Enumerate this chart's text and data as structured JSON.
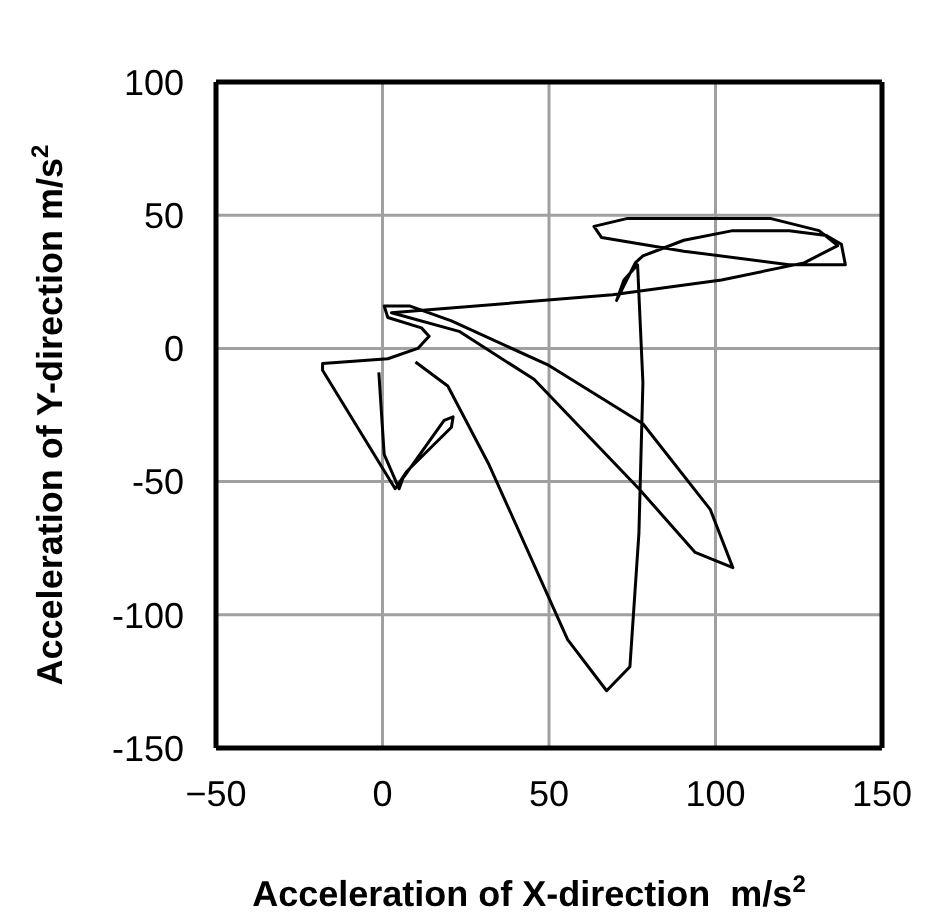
{
  "chart_data": {
    "type": "line",
    "xlabel": "Acceleration of X-direction  m/s$^{2}$",
    "ylabel": "Acceleration of Y-direction m/s$^{2}$",
    "xlim": [
      -50,
      150
    ],
    "xticks": [
      -50,
      0,
      50,
      100,
      150
    ],
    "ylim": [
      -150,
      100
    ],
    "yticks": [
      -150,
      -100,
      -50,
      0,
      50,
      100
    ],
    "grid": true,
    "marker": "none",
    "line_style": "solid",
    "series": [
      {
        "color": "#000000",
        "x": [
          -1.1,
          0.5,
          5.0,
          6.1,
          18.5,
          21.2,
          20.7,
          7.2,
          3.8,
          -18.0,
          -18.0,
          1.6,
          10.6,
          14.0,
          11.7,
          1.6,
          0.5,
          8.3,
          20.7,
          50.0,
          78.2,
          98.4,
          105.2,
          93.9,
          77.0,
          45.5,
          23.0,
          2.7,
          69.1,
          101.8,
          126.6,
          136.7,
          131.1,
          116.4,
          73.6,
          63.5,
          65.8,
          90.5,
          122.1,
          139.0,
          137.8,
          133.3,
          122.1,
          105.2,
          90.5,
          78.2,
          75.9,
          70.3,
          72.5,
          76.6,
          78.2,
          77.0,
          74.3,
          67.3,
          55.6,
          32.0,
          19.6,
          9.9
        ],
        "values": [
          -9.0,
          -39.8,
          -52.7,
          -48.8,
          -27.0,
          -25.7,
          -29.6,
          -46.3,
          -52.7,
          -8.2,
          -5.7,
          -3.9,
          0,
          4.6,
          7.7,
          11.6,
          15.9,
          15.9,
          10.3,
          -6.4,
          -28.3,
          -60.4,
          -82.3,
          -76.6,
          -52.7,
          -11.6,
          6.4,
          13.4,
          20.1,
          25.7,
          32.1,
          38.6,
          44.2,
          48.8,
          48.8,
          45.8,
          41.6,
          36.5,
          31.4,
          31.4,
          39.1,
          42.4,
          44.2,
          44.2,
          40.6,
          34.7,
          32.1,
          18.0,
          25.7,
          31.4,
          -12.9,
          -69.4,
          -119.5,
          -128.5,
          -109.3,
          -43.7,
          -14.1,
          -5.1
        ]
      }
    ]
  }
}
